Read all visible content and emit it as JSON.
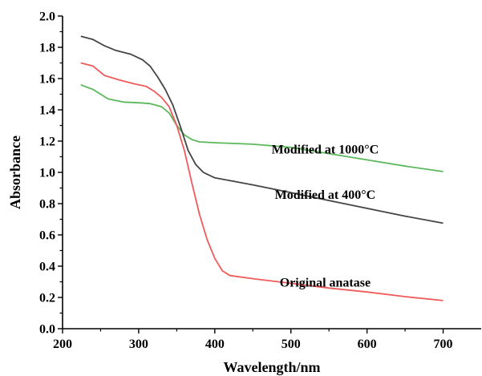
{
  "chart_data": {
    "type": "line",
    "title": "",
    "xlabel": "Wavelength/nm",
    "ylabel": "Absorbance",
    "xlim": [
      200,
      750
    ],
    "ylim": [
      0.0,
      2.0
    ],
    "xticks": [
      "200",
      "300",
      "400",
      "500",
      "600",
      "700"
    ],
    "yticks": [
      "0.0",
      "0.2",
      "0.4",
      "0.6",
      "0.8",
      "1.0",
      "1.2",
      "1.4",
      "1.6",
      "1.8",
      "2.0"
    ],
    "grid": false,
    "legend": "none",
    "series": [
      {
        "name": "Modified at 1000°C",
        "color": "#5cb85c",
        "points": [
          [
            224,
            1.56
          ],
          [
            240,
            1.53
          ],
          [
            260,
            1.47
          ],
          [
            280,
            1.45
          ],
          [
            300,
            1.445
          ],
          [
            315,
            1.44
          ],
          [
            330,
            1.42
          ],
          [
            340,
            1.38
          ],
          [
            350,
            1.3
          ],
          [
            360,
            1.24
          ],
          [
            370,
            1.21
          ],
          [
            380,
            1.195
          ],
          [
            400,
            1.19
          ],
          [
            450,
            1.18
          ],
          [
            500,
            1.16
          ],
          [
            550,
            1.12
          ],
          [
            600,
            1.08
          ],
          [
            650,
            1.04
          ],
          [
            700,
            1.005
          ]
        ]
      },
      {
        "name": "Modified at 400°C",
        "color": "#444444",
        "points": [
          [
            224,
            1.87
          ],
          [
            240,
            1.85
          ],
          [
            255,
            1.81
          ],
          [
            270,
            1.78
          ],
          [
            290,
            1.755
          ],
          [
            305,
            1.72
          ],
          [
            315,
            1.68
          ],
          [
            325,
            1.61
          ],
          [
            335,
            1.53
          ],
          [
            345,
            1.43
          ],
          [
            355,
            1.29
          ],
          [
            365,
            1.14
          ],
          [
            375,
            1.05
          ],
          [
            385,
            1.0
          ],
          [
            400,
            0.965
          ],
          [
            450,
            0.92
          ],
          [
            500,
            0.87
          ],
          [
            550,
            0.82
          ],
          [
            600,
            0.77
          ],
          [
            650,
            0.72
          ],
          [
            700,
            0.675
          ]
        ]
      },
      {
        "name": "Original anatase",
        "color": "#f05a5a",
        "points": [
          [
            224,
            1.7
          ],
          [
            240,
            1.68
          ],
          [
            255,
            1.62
          ],
          [
            275,
            1.59
          ],
          [
            295,
            1.565
          ],
          [
            310,
            1.55
          ],
          [
            320,
            1.52
          ],
          [
            330,
            1.48
          ],
          [
            340,
            1.42
          ],
          [
            350,
            1.3
          ],
          [
            360,
            1.14
          ],
          [
            370,
            0.93
          ],
          [
            380,
            0.73
          ],
          [
            390,
            0.57
          ],
          [
            400,
            0.45
          ],
          [
            410,
            0.37
          ],
          [
            420,
            0.34
          ],
          [
            450,
            0.32
          ],
          [
            500,
            0.29
          ],
          [
            550,
            0.26
          ],
          [
            600,
            0.235
          ],
          [
            650,
            0.205
          ],
          [
            700,
            0.18
          ]
        ]
      }
    ],
    "annotations": [
      {
        "text": "Modified at 1000°C",
        "x": 545,
        "y": 1.12
      },
      {
        "text": "Modified at 400°C",
        "x": 545,
        "y": 0.83
      },
      {
        "text": "Original anatase",
        "x": 545,
        "y": 0.27
      }
    ]
  }
}
